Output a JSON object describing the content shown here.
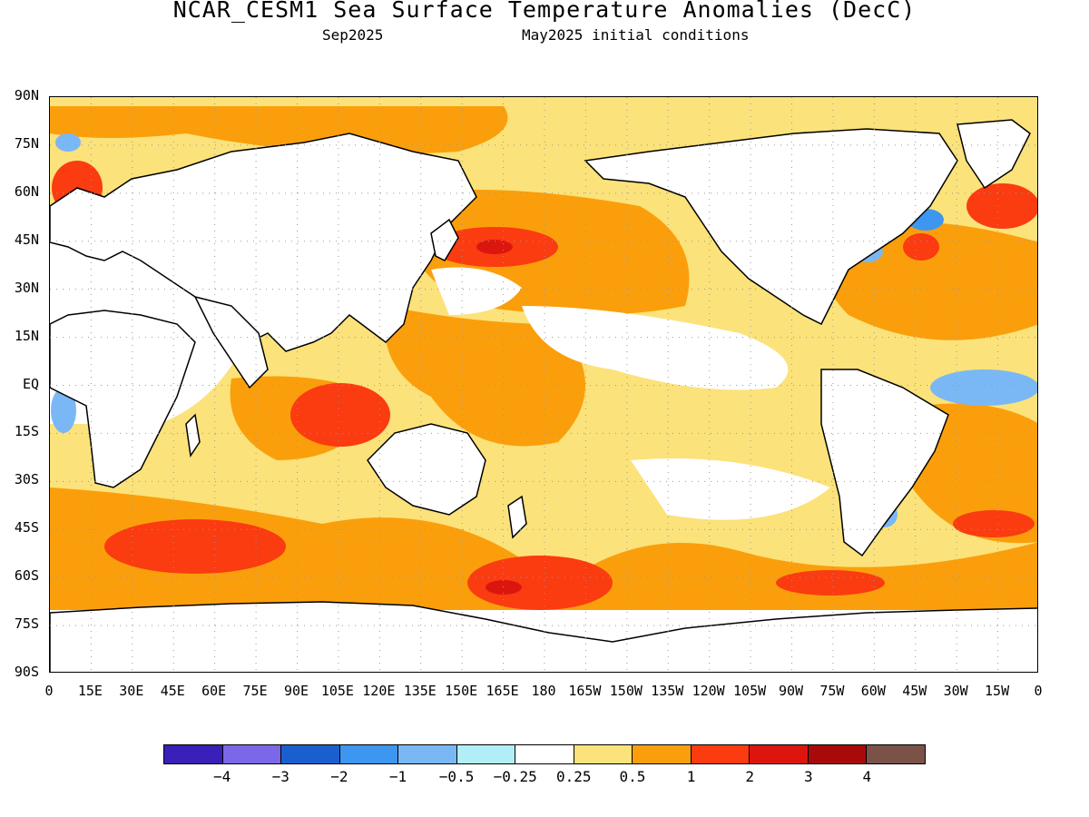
{
  "title": "NCAR_CESM1 Sea Surface Temperature Anomalies (DecC)",
  "valid_month": "Sep2025",
  "initial_conditions": "May2025 initial conditions",
  "y_ticks": [
    "90N",
    "75N",
    "60N",
    "45N",
    "30N",
    "15N",
    "EQ",
    "15S",
    "30S",
    "45S",
    "60S",
    "75S",
    "90S"
  ],
  "x_ticks": [
    "0",
    "15E",
    "30E",
    "45E",
    "60E",
    "75E",
    "90E",
    "105E",
    "120E",
    "135E",
    "150E",
    "165E",
    "180",
    "165W",
    "150W",
    "135W",
    "120W",
    "105W",
    "90W",
    "75W",
    "60W",
    "45W",
    "30W",
    "15W",
    "0"
  ],
  "colorbar": {
    "colors": [
      "#3a1fb8",
      "#7b68e8",
      "#1a5fd0",
      "#3d96f0",
      "#7ab8f5",
      "#b2eef8",
      "#ffffff",
      "#fbe27a",
      "#fa9f0b",
      "#fb3b10",
      "#dc160f",
      "#a80a0a",
      "#7a5248"
    ],
    "labels": [
      "-4",
      "-3",
      "-2",
      "-1",
      "-0.5",
      "-0.25",
      "0.25",
      "0.5",
      "1",
      "2",
      "3",
      "4"
    ]
  },
  "map": {
    "projection": "cylindrical equidistant",
    "lon_range": [
      0,
      360
    ],
    "lat_range": [
      -90,
      90
    ],
    "land_color": "#ffffff",
    "coastline_color": "#000000",
    "grid": "dotted"
  }
}
